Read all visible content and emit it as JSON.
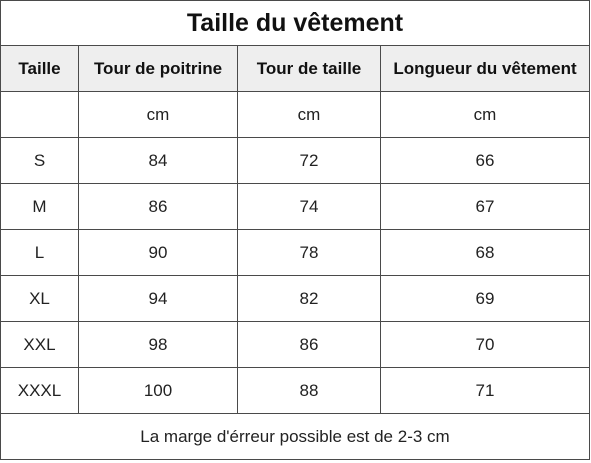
{
  "title": "Taille du vêtement",
  "headers": [
    "Taille",
    "Tour de poitrine",
    "Tour de taille",
    "Longueur du vêtement"
  ],
  "units": [
    "",
    "cm",
    "cm",
    "cm"
  ],
  "rows": [
    [
      "S",
      "84",
      "72",
      "66"
    ],
    [
      "M",
      "86",
      "74",
      "67"
    ],
    [
      "L",
      "90",
      "78",
      "68"
    ],
    [
      "XL",
      "94",
      "82",
      "69"
    ],
    [
      "XXL",
      "98",
      "86",
      "70"
    ],
    [
      "XXXL",
      "100",
      "88",
      "71"
    ]
  ],
  "note": "La marge d'érreur possible est de 2-3 cm"
}
